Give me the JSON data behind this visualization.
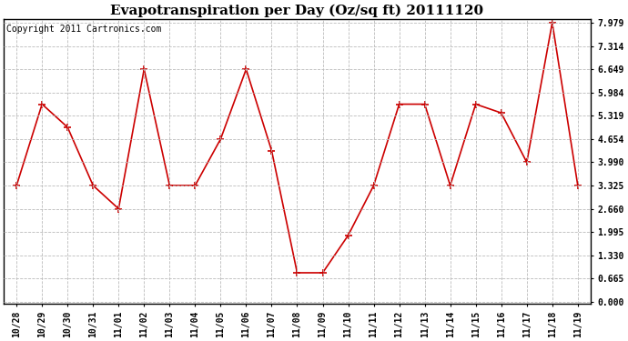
{
  "title": "Evapotranspiration per Day (Oz/sq ft) 20111120",
  "copyright": "Copyright 2011 Cartronics.com",
  "x_labels": [
    "10/28",
    "10/29",
    "10/30",
    "10/31",
    "11/01",
    "11/02",
    "11/03",
    "11/04",
    "11/05",
    "11/06",
    "11/07",
    "11/08",
    "11/09",
    "11/10",
    "11/11",
    "11/12",
    "11/13",
    "11/14",
    "11/15",
    "11/16",
    "11/17",
    "11/18",
    "11/19"
  ],
  "y_values": [
    3.325,
    5.65,
    4.99,
    3.325,
    2.66,
    6.649,
    3.325,
    3.325,
    4.654,
    6.649,
    4.32,
    0.83,
    0.83,
    1.9,
    3.325,
    5.65,
    5.65,
    3.325,
    5.65,
    5.4,
    3.99,
    7.979,
    3.325
  ],
  "y_ticks": [
    0.0,
    0.665,
    1.33,
    1.995,
    2.66,
    3.325,
    3.99,
    4.654,
    5.319,
    5.984,
    6.649,
    7.314,
    7.979
  ],
  "ylim_min": 0.0,
  "ylim_max": 7.979,
  "line_color": "#cc0000",
  "marker": "+",
  "marker_size": 6,
  "marker_edge_width": 1.2,
  "line_width": 1.2,
  "bg_color": "#ffffff",
  "grid_color": "#bbbbbb",
  "title_fontsize": 11,
  "tick_fontsize": 7,
  "copyright_fontsize": 7
}
